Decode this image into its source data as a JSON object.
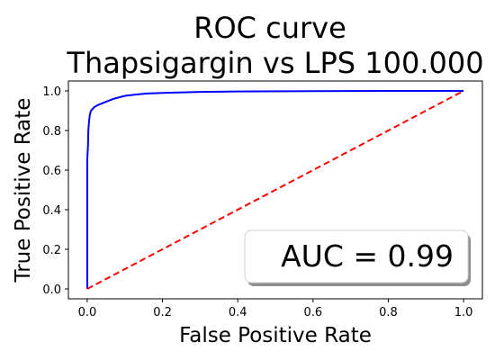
{
  "chart_data": {
    "type": "line",
    "title_line1": "ROC curve",
    "title_line2": "Thapsigargin vs LPS 100.000",
    "xlabel": "False Positive Rate",
    "ylabel": "True Positive Rate",
    "xlim": [
      -0.05,
      1.05
    ],
    "ylim": [
      -0.05,
      1.05
    ],
    "x_ticks": [
      0.0,
      0.2,
      0.4,
      0.6,
      0.8,
      1.0
    ],
    "x_tick_labels": [
      "0.0",
      "0.2",
      "0.4",
      "0.6",
      "0.8",
      "1.0"
    ],
    "y_ticks": [
      0.0,
      0.2,
      0.4,
      0.6,
      0.8,
      1.0
    ],
    "y_tick_labels": [
      "0.0",
      "0.2",
      "0.4",
      "0.6",
      "0.8",
      "1.0"
    ],
    "grid": false,
    "legend": {
      "placement": "lower-right",
      "text": "AUC = 0.99"
    },
    "series": [
      {
        "style": "solid",
        "color": "#0000ff",
        "x": [
          0.0,
          0.0,
          0.002,
          0.003,
          0.005,
          0.007,
          0.01,
          0.015,
          0.02,
          0.03,
          0.05,
          0.07,
          0.1,
          0.13,
          0.16,
          0.2,
          0.3,
          0.4,
          0.6,
          0.8,
          1.0
        ],
        "y": [
          0.0,
          0.65,
          0.72,
          0.8,
          0.85,
          0.88,
          0.9,
          0.91,
          0.92,
          0.93,
          0.945,
          0.96,
          0.975,
          0.982,
          0.987,
          0.99,
          0.995,
          0.997,
          0.999,
          1.0,
          1.0
        ]
      },
      {
        "style": "dashed",
        "color": "#ff0000",
        "x": [
          0.0,
          1.0
        ],
        "y": [
          0.0,
          1.0
        ]
      }
    ]
  }
}
